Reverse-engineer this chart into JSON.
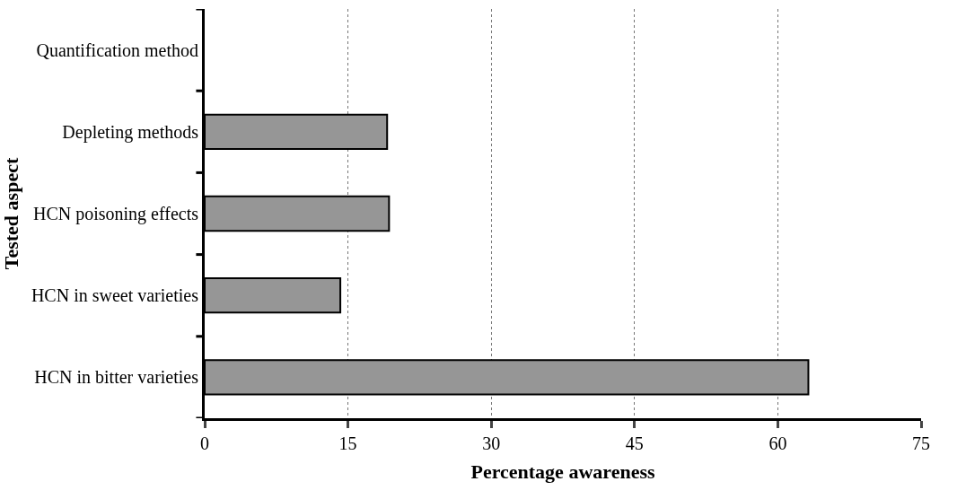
{
  "chart_data": {
    "type": "bar",
    "orientation": "horizontal",
    "xlabel": "Percentage awareness",
    "ylabel": "Tested aspect",
    "categories": [
      "Quantification method",
      "Depleting methods",
      "HCN poisoning effects",
      "HCN in sweet varieties",
      "HCN in bitter varieties"
    ],
    "values": [
      0,
      19.1,
      19.3,
      14.2,
      63.2
    ],
    "color": "#969696",
    "xlim": [
      0,
      75
    ],
    "xticks": [
      0,
      15,
      30,
      45,
      60,
      75
    ],
    "grid": "x"
  }
}
